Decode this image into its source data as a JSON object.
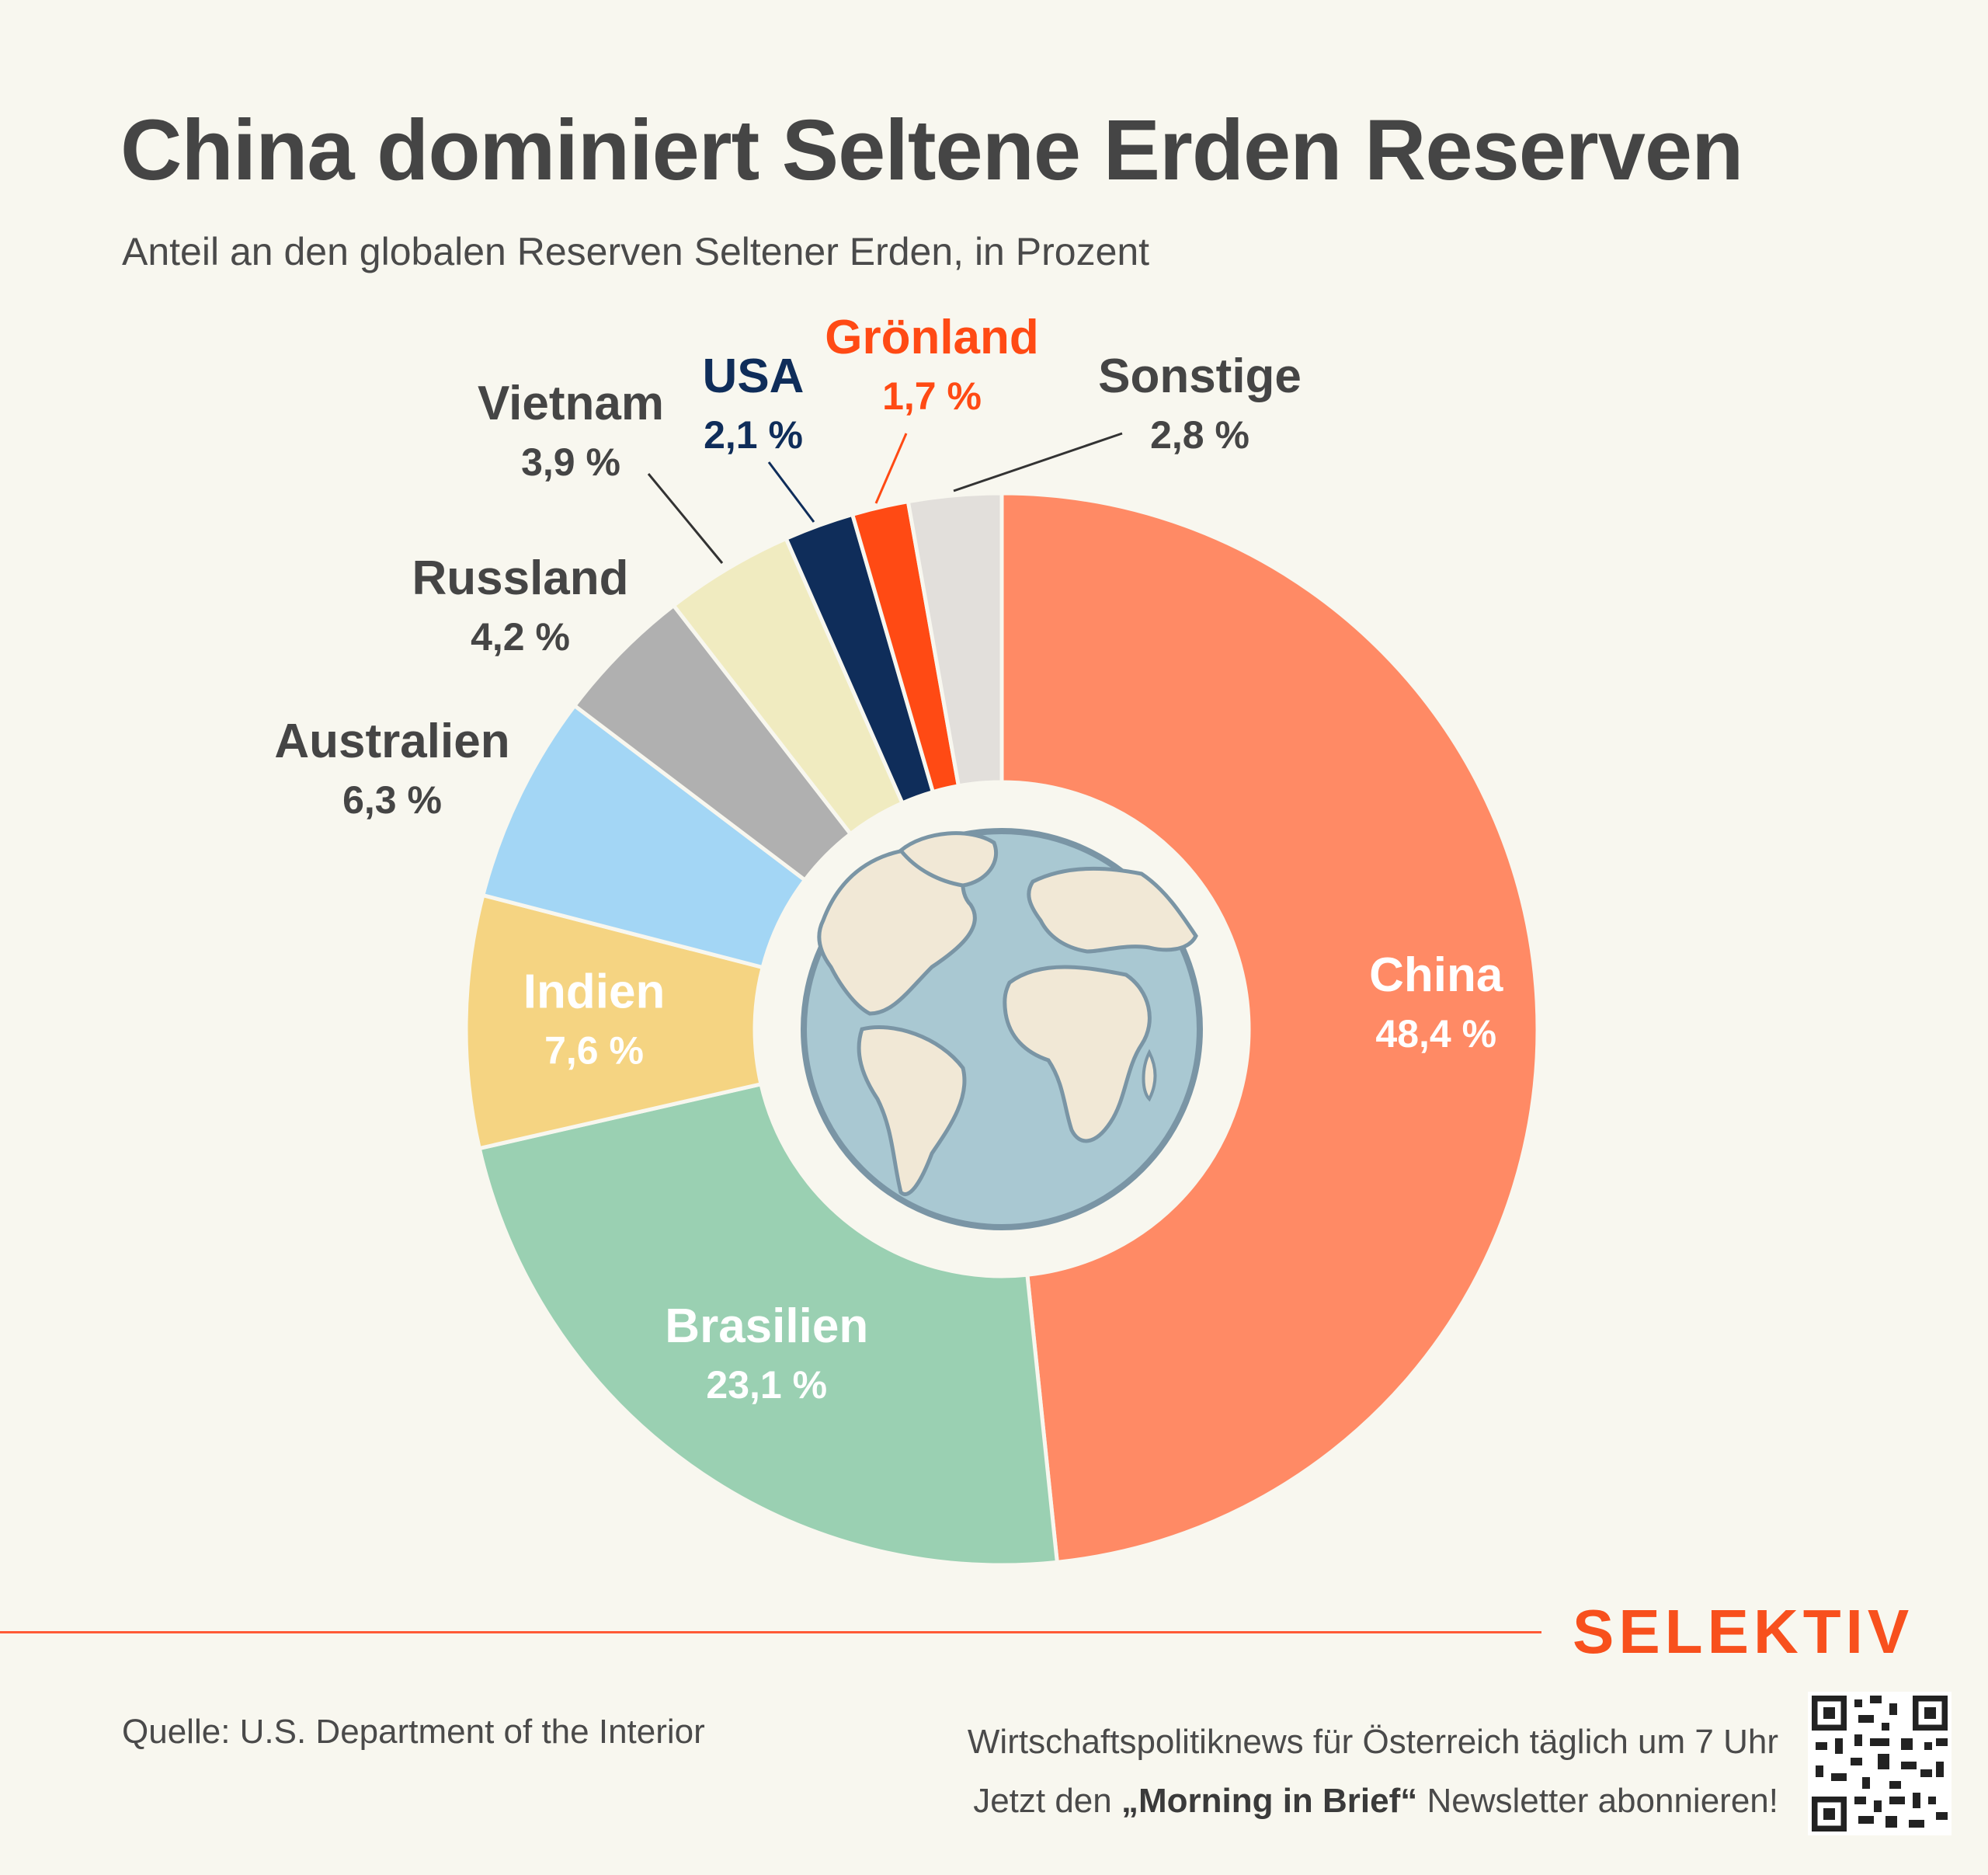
{
  "title": "China dominiert Seltene Erden Reserven",
  "subtitle": "Anteil an den globalen Reserven Seltener Erden, in Prozent",
  "chart_data": {
    "type": "pie",
    "variant": "donut",
    "slices": [
      {
        "name": "China",
        "label": "48,4 %",
        "value": 48.4,
        "color": "#ff8a65",
        "text_color": "#ffffff"
      },
      {
        "name": "Brasilien",
        "label": "23,1 %",
        "value": 23.1,
        "color": "#9ad0b2",
        "text_color": "#ffffff"
      },
      {
        "name": "Indien",
        "label": "7,6 %",
        "value": 7.6,
        "color": "#f5d482",
        "text_color": "#ffffff"
      },
      {
        "name": "Australien",
        "label": "6,3 %",
        "value": 6.3,
        "color": "#a3d6f5",
        "text_color": "#454545"
      },
      {
        "name": "Russland",
        "label": "4,2 %",
        "value": 4.2,
        "color": "#b0b0b0",
        "text_color": "#454545"
      },
      {
        "name": "Vietnam",
        "label": "3,9 %",
        "value": 3.9,
        "color": "#f0ebc0",
        "text_color": "#454545"
      },
      {
        "name": "USA",
        "label": "2,1 %",
        "value": 2.1,
        "color": "#0f2d5a",
        "text_color": "#0f2d5a"
      },
      {
        "name": "Grönland",
        "label": "1,7 %",
        "value": 1.7,
        "color": "#ff4a14",
        "text_color": "#ff4a14"
      },
      {
        "name": "Sonstige",
        "label": "2,8 %",
        "value": 2.8,
        "color": "#e2dfdb",
        "text_color": "#454545"
      }
    ]
  },
  "footer": {
    "brand": "SELEKTIV",
    "source": "Quelle: U.S. Department of the Interior",
    "promo_line1": "Wirtschaftspolitiknews für Österreich täglich um 7 Uhr",
    "promo_line2_pre": "Jetzt den ",
    "promo_line2_bold": "„Morning in Brief“",
    "promo_line2_post": " Newsletter abonnieren!",
    "qr_icon": "qr-code-icon"
  }
}
